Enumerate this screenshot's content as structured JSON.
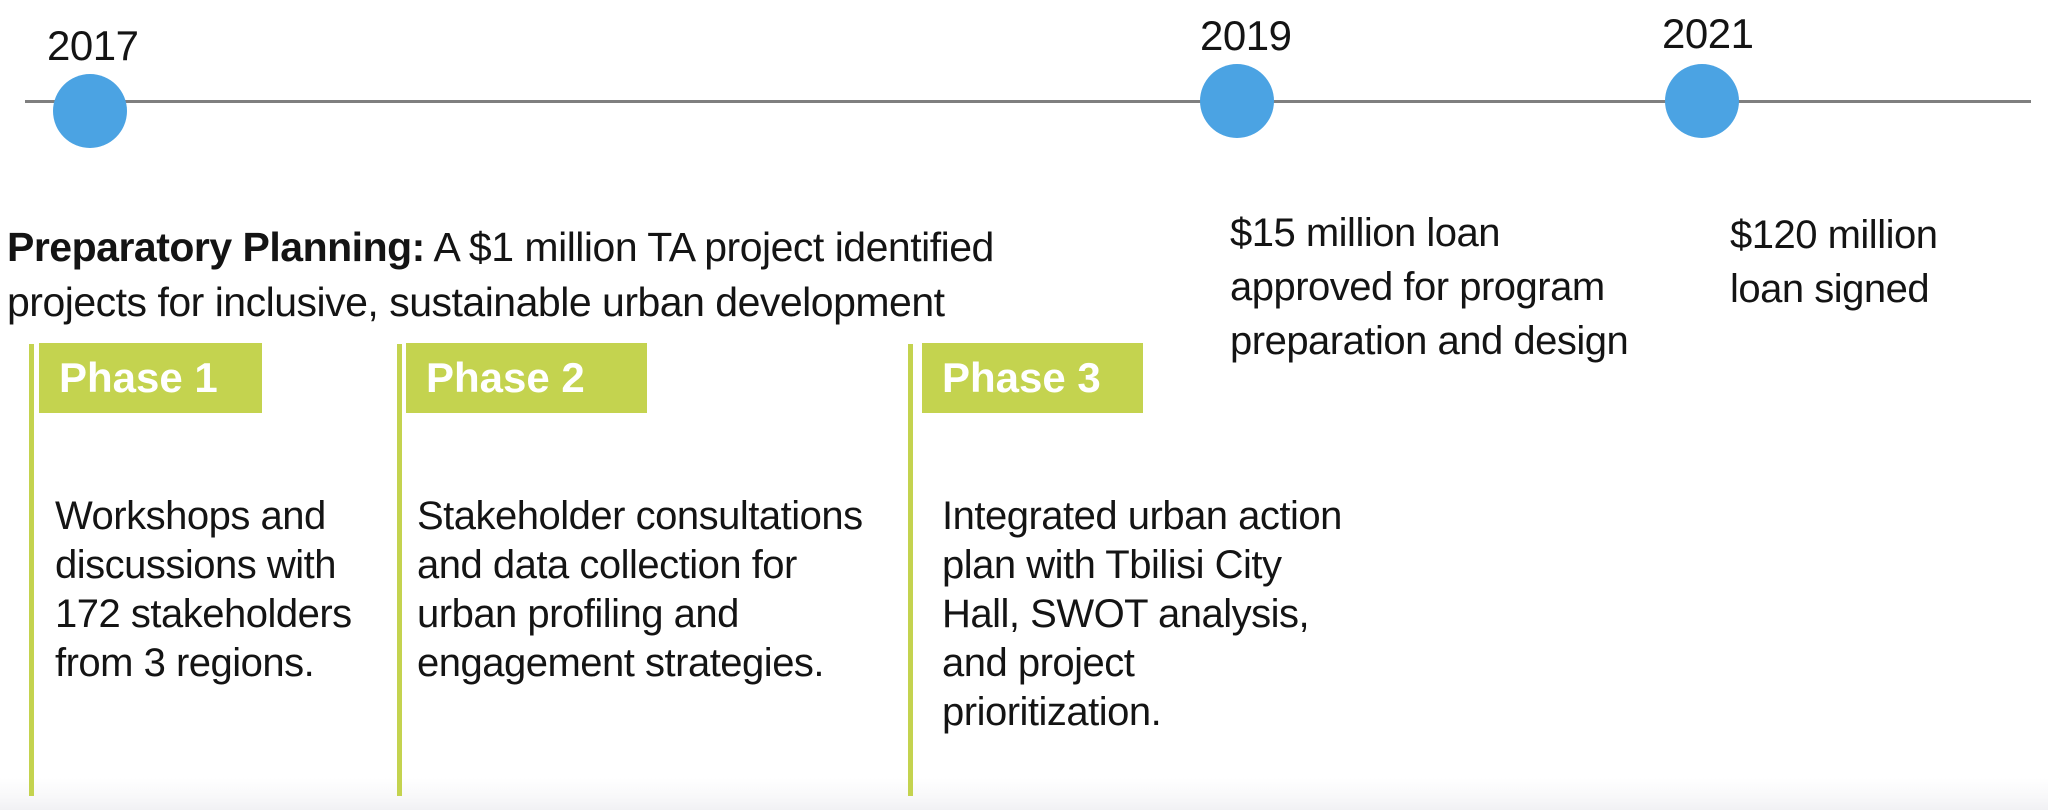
{
  "colors": {
    "accent_green": "#c4d34f",
    "accent_blue": "#4ba3e3",
    "timeline_gray": "#7f7f7f",
    "text": "#141414",
    "phase_header_text": "#ffffff"
  },
  "timeline": {
    "milestones": [
      {
        "year": "2017"
      },
      {
        "year": "2019",
        "description": "$15 million loan\napproved for program\npreparation and design"
      },
      {
        "year": "2021",
        "description": "$120 million\nloan signed"
      }
    ]
  },
  "intro": {
    "lead": "Preparatory Planning:",
    "body": " A $1 million TA project identified\nprojects for inclusive, sustainable urban development"
  },
  "phases": [
    {
      "label": "Phase 1",
      "description": "Workshops and\ndiscussions with\n172 stakeholders\nfrom 3 regions."
    },
    {
      "label": "Phase 2",
      "description": "Stakeholder consultations\nand data collection for\nurban profiling and\nengagement strategies."
    },
    {
      "label": "Phase 3",
      "description": "Integrated urban action\nplan with Tbilisi City\nHall, SWOT analysis,\nand project\nprioritization."
    }
  ]
}
